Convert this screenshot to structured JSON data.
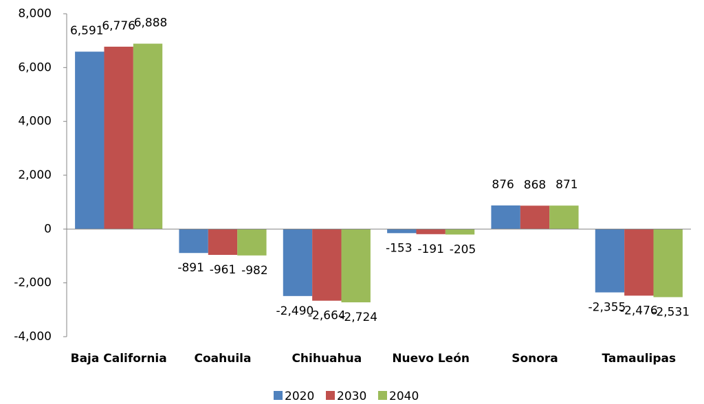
{
  "chart_data": {
    "type": "bar",
    "categories": [
      "Baja California",
      "Coahuila",
      "Chihuahua",
      "Nuevo León",
      "Sonora",
      "Tamaulipas"
    ],
    "series": [
      {
        "name": "2020",
        "color": "#4f81bd",
        "values": [
          6591,
          -891,
          -2490,
          -153,
          876,
          -2355
        ],
        "value_labels": [
          "6,591",
          "-891",
          "-2,490",
          "-153",
          "876",
          "-2,355"
        ]
      },
      {
        "name": "2030",
        "color": "#c0504d",
        "values": [
          6776,
          -961,
          -2664,
          -191,
          868,
          -2476
        ],
        "value_labels": [
          "6,776",
          "-961",
          "-2,664",
          "-191",
          "868",
          "-2,476"
        ]
      },
      {
        "name": "2040",
        "color": "#9bbb59",
        "values": [
          6888,
          -982,
          -2724,
          -205,
          871,
          -2531
        ],
        "value_labels": [
          "6,888",
          "-982",
          "-2,724",
          "-205",
          "871",
          "-2,531"
        ]
      }
    ],
    "ylim": [
      -4000,
      8000
    ],
    "yticks": [
      {
        "value": -4000,
        "label": "-4,000"
      },
      {
        "value": -2000,
        "label": "-2,000"
      },
      0,
      {
        "value": 2000,
        "label": "2,000"
      },
      {
        "value": 4000,
        "label": "4,000"
      },
      {
        "value": 6000,
        "label": "6,000"
      },
      {
        "value": 8000,
        "label": "8,000"
      }
    ],
    "legend": "bottom"
  }
}
